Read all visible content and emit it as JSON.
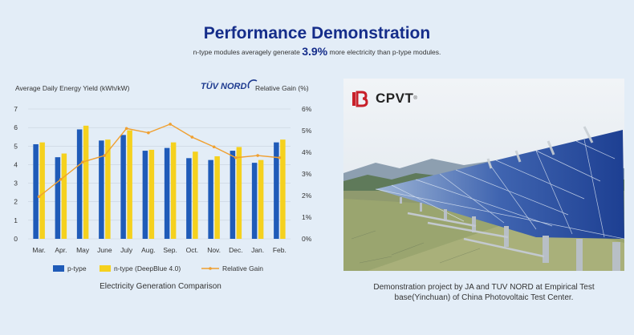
{
  "header": {
    "title": "Performance Demonstration",
    "subtitle_before": "n-type modules averagely generate",
    "subtitle_highlight": "3.9%",
    "subtitle_after": "more electricity than p-type modules."
  },
  "logos": {
    "tuv": "TÜV NORD",
    "cpvt": "CPVT",
    "cpvt_mark": "®"
  },
  "captions": {
    "chart": "Electricity Generation Comparison",
    "photo_line1": "Demonstration project by JA and TUV NORD at Empirical Test",
    "photo_line2": "base(Yinchuan) of China Photovoltaic Test Center."
  },
  "colors": {
    "p_type": "#1f5bb8",
    "n_type": "#f5d11e",
    "gain": "#f0a030",
    "title": "#152d8a"
  },
  "chart_data": {
    "type": "bar",
    "title": "",
    "ylabel": "Average Daily Energy Yield  (kWh/kW)",
    "y2label": "Relative Gain  (%)",
    "ylim": [
      0,
      7
    ],
    "y2lim": [
      0,
      6
    ],
    "yticks": [
      "0",
      "1",
      "2",
      "3",
      "4",
      "5",
      "6",
      "7"
    ],
    "y2ticks": [
      "0%",
      "1%",
      "2%",
      "3%",
      "4%",
      "5%",
      "6%"
    ],
    "grid": true,
    "legend": "bottom",
    "categories": [
      "Mar.",
      "Apr.",
      "May",
      "June",
      "July",
      "Aug.",
      "Sep.",
      "Oct.",
      "Nov.",
      "Dec.",
      "Jan.",
      "Feb."
    ],
    "series": [
      {
        "name": "p-type",
        "kind": "bar",
        "values": [
          5.1,
          4.4,
          5.9,
          5.3,
          5.6,
          4.75,
          4.9,
          4.35,
          4.25,
          4.75,
          4.1,
          5.2
        ]
      },
      {
        "name": "n-type (DeepBlue 4.0)",
        "kind": "bar",
        "values": [
          5.2,
          4.6,
          6.1,
          5.35,
          5.85,
          4.8,
          5.2,
          4.7,
          4.45,
          4.95,
          4.25,
          5.35
        ]
      },
      {
        "name": "Relative Gain",
        "kind": "line",
        "axis": "right",
        "values": [
          1.95,
          2.75,
          3.55,
          3.85,
          5.1,
          4.9,
          5.3,
          4.7,
          4.25,
          3.75,
          3.85,
          3.75
        ]
      }
    ]
  }
}
